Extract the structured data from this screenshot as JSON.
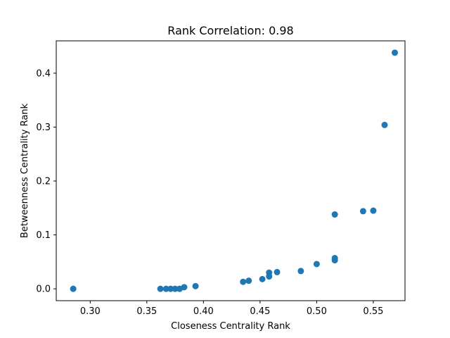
{
  "chart_data": {
    "type": "scatter",
    "title": "Rank Correlation: 0.98",
    "xlabel": "Closeness Centrality Rank",
    "ylabel": "Betweenness Centrality Rank",
    "xlim": [
      0.27,
      0.578
    ],
    "ylim": [
      -0.022,
      0.46
    ],
    "xticks": [
      0.3,
      0.35,
      0.4,
      0.45,
      0.5,
      0.55
    ],
    "xtick_labels": [
      "0.30",
      "0.35",
      "0.40",
      "0.45",
      "0.50",
      "0.55"
    ],
    "yticks": [
      0.0,
      0.1,
      0.2,
      0.3,
      0.4
    ],
    "ytick_labels": [
      "0.0",
      "0.1",
      "0.2",
      "0.3",
      "0.4"
    ],
    "grid": false,
    "marker_color": "#1f77b4",
    "points": [
      {
        "x": 0.285,
        "y": 0.0
      },
      {
        "x": 0.362,
        "y": 0.0
      },
      {
        "x": 0.367,
        "y": 0.0
      },
      {
        "x": 0.371,
        "y": 0.0
      },
      {
        "x": 0.375,
        "y": 0.0
      },
      {
        "x": 0.379,
        "y": 0.0
      },
      {
        "x": 0.383,
        "y": 0.003
      },
      {
        "x": 0.393,
        "y": 0.005
      },
      {
        "x": 0.435,
        "y": 0.013
      },
      {
        "x": 0.44,
        "y": 0.015
      },
      {
        "x": 0.452,
        "y": 0.018
      },
      {
        "x": 0.458,
        "y": 0.023
      },
      {
        "x": 0.458,
        "y": 0.03
      },
      {
        "x": 0.465,
        "y": 0.031
      },
      {
        "x": 0.486,
        "y": 0.033
      },
      {
        "x": 0.5,
        "y": 0.046
      },
      {
        "x": 0.516,
        "y": 0.053
      },
      {
        "x": 0.516,
        "y": 0.057
      },
      {
        "x": 0.516,
        "y": 0.138
      },
      {
        "x": 0.541,
        "y": 0.144
      },
      {
        "x": 0.55,
        "y": 0.145
      },
      {
        "x": 0.56,
        "y": 0.304
      },
      {
        "x": 0.569,
        "y": 0.438
      }
    ]
  }
}
